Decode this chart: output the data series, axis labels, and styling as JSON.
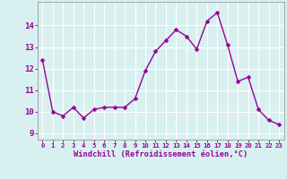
{
  "x": [
    0,
    1,
    2,
    3,
    4,
    5,
    6,
    7,
    8,
    9,
    10,
    11,
    12,
    13,
    14,
    15,
    16,
    17,
    18,
    19,
    20,
    21,
    22,
    23
  ],
  "y": [
    12.4,
    10.0,
    9.8,
    10.2,
    9.7,
    10.1,
    10.2,
    10.2,
    10.2,
    10.6,
    11.9,
    12.8,
    13.3,
    13.8,
    13.5,
    12.9,
    14.2,
    14.6,
    13.1,
    11.4,
    11.6,
    10.1,
    9.6,
    9.4
  ],
  "line_color": "#990099",
  "marker": "D",
  "marker_size": 2.5,
  "bg_color": "#d8f0f0",
  "grid_color": "#ffffff",
  "xlabel": "Windchill (Refroidissement éolien,°C)",
  "xlabel_color": "#990099",
  "tick_color": "#990099",
  "ylabel_ticks": [
    9,
    10,
    11,
    12,
    13,
    14
  ],
  "xlim": [
    -0.5,
    23.5
  ],
  "ylim": [
    8.7,
    15.1
  ],
  "xticks": [
    0,
    1,
    2,
    3,
    4,
    5,
    6,
    7,
    8,
    9,
    10,
    11,
    12,
    13,
    14,
    15,
    16,
    17,
    18,
    19,
    20,
    21,
    22,
    23
  ],
  "line_width": 1.0,
  "marker_fill": "#990099"
}
